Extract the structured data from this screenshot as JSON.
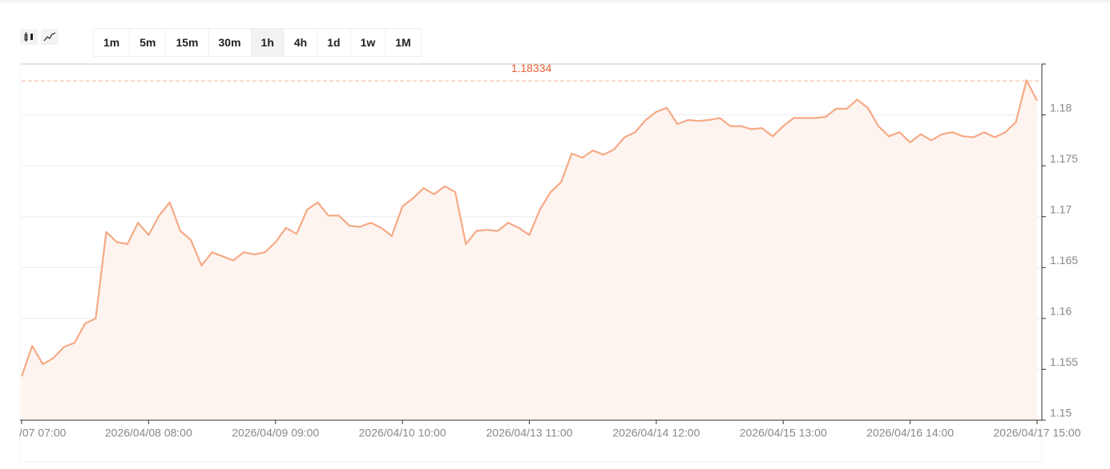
{
  "toolbar": {
    "intervals": [
      "1m",
      "5m",
      "15m",
      "30m",
      "1h",
      "4h",
      "1d",
      "1w",
      "1M"
    ]
  },
  "chart_data": {
    "type": "line",
    "categories": [
      "/07 07:00",
      null,
      null,
      null,
      null,
      null,
      null,
      null,
      null,
      null,
      null,
      null,
      "2026/04/08 08:00",
      null,
      null,
      null,
      null,
      null,
      null,
      null,
      null,
      null,
      null,
      null,
      "2026/04/09 09:00",
      null,
      null,
      null,
      null,
      null,
      null,
      null,
      null,
      null,
      null,
      null,
      "2026/04/10 10:00",
      null,
      null,
      null,
      null,
      null,
      null,
      null,
      null,
      null,
      null,
      null,
      "2026/04/13 11:00",
      null,
      null,
      null,
      null,
      null,
      null,
      null,
      null,
      null,
      null,
      null,
      "2026/04/14 12:00",
      null,
      null,
      null,
      null,
      null,
      null,
      null,
      null,
      null,
      null,
      null,
      "2026/04/15 13:00",
      null,
      null,
      null,
      null,
      null,
      null,
      null,
      null,
      null,
      null,
      null,
      "2026/04/16 14:00",
      null,
      null,
      null,
      null,
      null,
      null,
      null,
      null,
      null,
      null,
      null,
      "2026/04/17 15:00"
    ],
    "series": [
      {
        "color": "#f5aa85",
        "values": [
          1.1543,
          1.1573,
          1.1555,
          1.1561,
          1.1572,
          1.1576,
          1.1595,
          1.16,
          1.1685,
          1.1675,
          1.1673,
          1.1694,
          1.1682,
          1.1701,
          1.1714,
          1.1686,
          1.1677,
          1.1652,
          1.1665,
          1.1661,
          1.1657,
          1.1665,
          1.1663,
          1.1665,
          1.1675,
          1.1689,
          1.1683,
          1.1707,
          1.1714,
          1.1701,
          1.1701,
          1.1691,
          1.169,
          1.1694,
          1.1689,
          1.1681,
          1.171,
          1.1718,
          1.1728,
          1.1722,
          1.173,
          1.1724,
          1.1673,
          1.1686,
          1.1687,
          1.1686,
          1.1694,
          1.1689,
          1.1682,
          1.1707,
          1.1724,
          1.1734,
          1.1762,
          1.1758,
          1.1765,
          1.1761,
          1.1766,
          1.1778,
          1.1783,
          1.1795,
          1.1803,
          1.1807,
          1.1791,
          1.1795,
          1.1794,
          1.1795,
          1.1797,
          1.1789,
          1.1789,
          1.1786,
          1.1787,
          1.1779,
          1.1789,
          1.1797,
          1.1797,
          1.1797,
          1.1798,
          1.1806,
          1.1806,
          1.1815,
          1.1807,
          1.1789,
          1.1779,
          1.1783,
          1.1773,
          1.1781,
          1.1775,
          1.1781,
          1.1783,
          1.1779,
          1.1778,
          1.1783,
          1.1778,
          1.1783,
          1.1793,
          1.1834,
          1.1814
        ]
      }
    ],
    "ylim": [
      1.15,
      1.185
    ],
    "yticks": [
      1.15,
      1.155,
      1.16,
      1.165,
      1.17,
      1.175,
      1.18
    ],
    "grid": true,
    "price_line": 1.18334,
    "price_line_color": "#e8643a",
    "area_fill": "#fdf4ef"
  }
}
